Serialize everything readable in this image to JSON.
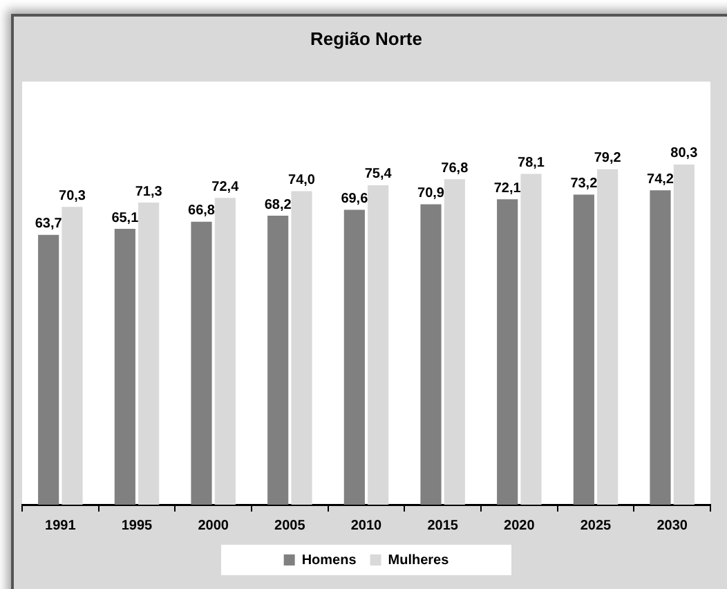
{
  "chart_data": {
    "type": "bar",
    "title": "Região Norte",
    "categories": [
      "1991",
      "1995",
      "2000",
      "2005",
      "2010",
      "2015",
      "2020",
      "2025",
      "2030"
    ],
    "series": [
      {
        "name": "Homens",
        "color": "#808080",
        "values": [
          63.7,
          65.1,
          66.8,
          68.2,
          69.6,
          70.9,
          72.1,
          73.2,
          74.2
        ],
        "value_labels": [
          "63,7",
          "65,1",
          "66,8",
          "68,2",
          "69,6",
          "70,9",
          "72,1",
          "73,2",
          "74,2"
        ]
      },
      {
        "name": "Mulheres",
        "color": "#d9d9d9",
        "values": [
          70.3,
          71.3,
          72.4,
          74.0,
          75.4,
          76.8,
          78.1,
          79.2,
          80.3
        ],
        "value_labels": [
          "70,3",
          "71,3",
          "72,4",
          "74,0",
          "75,4",
          "76,8",
          "78,1",
          "79,2",
          "80,3"
        ]
      }
    ],
    "ylim": [
      0,
      100
    ],
    "tick_labels": "x",
    "legend": "bottom"
  }
}
